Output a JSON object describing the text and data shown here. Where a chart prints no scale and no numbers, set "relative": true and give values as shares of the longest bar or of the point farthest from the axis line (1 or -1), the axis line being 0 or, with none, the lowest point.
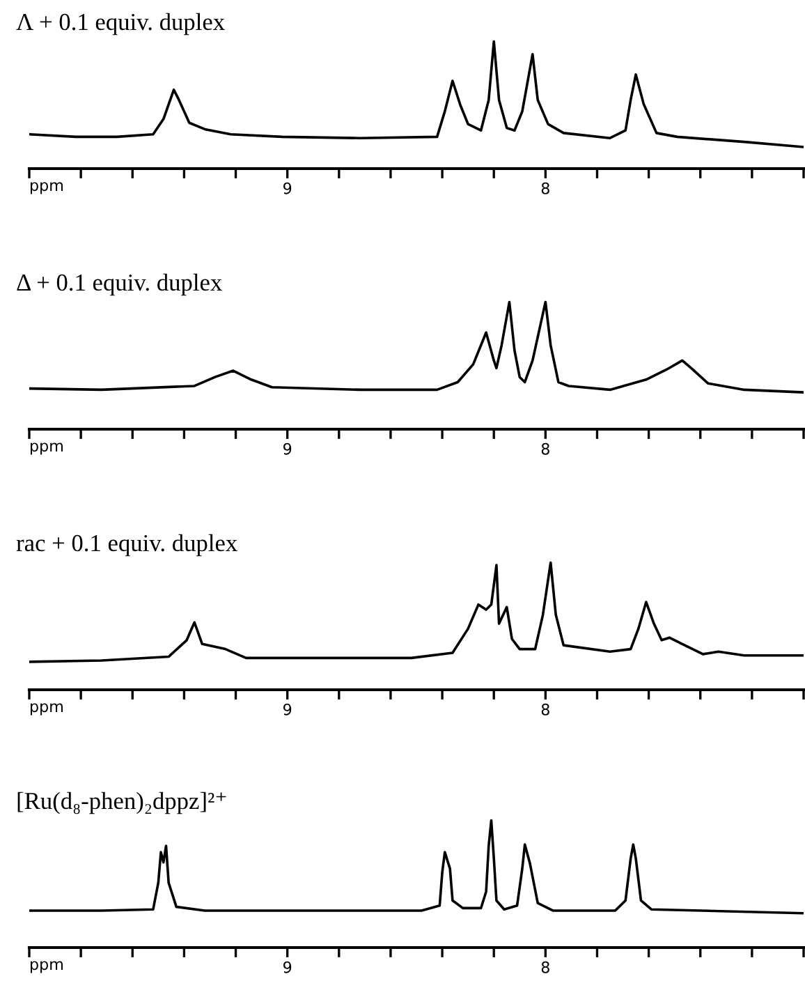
{
  "chart_data": [
    {
      "type": "line",
      "title": "Λ + 0.1 equiv. duplex",
      "xlabel": "ppm",
      "relative": true,
      "xlim": [
        10.0,
        7.0
      ],
      "xticks": [
        {
          "value": 10.0,
          "label": null
        },
        {
          "value": 9.8,
          "label": null
        },
        {
          "value": 9.6,
          "label": null
        },
        {
          "value": 9.4,
          "label": null
        },
        {
          "value": 9.2,
          "label": null
        },
        9,
        {
          "value": 8.8,
          "label": null
        },
        {
          "value": 8.6,
          "label": null
        },
        {
          "value": 8.4,
          "label": null
        },
        {
          "value": 8.2,
          "label": null
        },
        8,
        {
          "value": 7.8,
          "label": null
        },
        {
          "value": 7.6,
          "label": null
        },
        {
          "value": 7.4,
          "label": null
        },
        {
          "value": 7.2,
          "label": null
        },
        {
          "value": 7.0,
          "label": null
        }
      ],
      "tick_labels": "x",
      "grid": false,
      "legend": false,
      "marker": "none",
      "line_style": "solid",
      "series": [
        {
          "color": "#000000",
          "x": [
            10.0,
            9.82,
            9.66,
            9.52,
            9.48,
            9.44,
            9.42,
            9.38,
            9.32,
            9.22,
            9.02,
            8.72,
            8.42,
            8.39,
            8.36,
            8.33,
            8.3,
            8.25,
            8.22,
            8.2,
            8.18,
            8.15,
            8.12,
            8.09,
            8.05,
            8.03,
            7.99,
            7.93,
            7.75,
            7.69,
            7.67,
            7.65,
            7.62,
            7.57,
            7.49,
            7.23,
            7.0
          ],
          "values": [
            0.27,
            0.25,
            0.25,
            0.27,
            0.39,
            0.62,
            0.54,
            0.36,
            0.31,
            0.27,
            0.25,
            0.24,
            0.25,
            0.45,
            0.69,
            0.5,
            0.35,
            0.3,
            0.54,
            1.0,
            0.54,
            0.32,
            0.3,
            0.45,
            0.9,
            0.54,
            0.35,
            0.28,
            0.24,
            0.3,
            0.54,
            0.74,
            0.51,
            0.28,
            0.25,
            0.21,
            0.17
          ]
        }
      ]
    },
    {
      "type": "line",
      "title": "Δ + 0.1 equiv. duplex",
      "xlabel": "ppm",
      "relative": true,
      "xlim": [
        10.0,
        7.0
      ],
      "xticks": [
        {
          "value": 10.0,
          "label": null
        },
        {
          "value": 9.8,
          "label": null
        },
        {
          "value": 9.6,
          "label": null
        },
        {
          "value": 9.4,
          "label": null
        },
        {
          "value": 9.2,
          "label": null
        },
        9,
        {
          "value": 8.8,
          "label": null
        },
        {
          "value": 8.6,
          "label": null
        },
        {
          "value": 8.4,
          "label": null
        },
        {
          "value": 8.2,
          "label": null
        },
        8,
        {
          "value": 7.8,
          "label": null
        },
        {
          "value": 7.6,
          "label": null
        },
        {
          "value": 7.4,
          "label": null
        },
        {
          "value": 7.2,
          "label": null
        },
        {
          "value": 7.0,
          "label": null
        }
      ],
      "tick_labels": "x",
      "grid": false,
      "legend": false,
      "marker": "none",
      "line_style": "solid",
      "series": [
        {
          "color": "#000000",
          "x": [
            10.0,
            9.72,
            9.36,
            9.28,
            9.21,
            9.14,
            9.06,
            8.72,
            8.42,
            8.34,
            8.28,
            8.23,
            8.2,
            8.19,
            8.17,
            8.14,
            8.12,
            8.1,
            8.08,
            8.05,
            8.0,
            7.98,
            7.95,
            7.91,
            7.75,
            7.61,
            7.53,
            7.47,
            7.43,
            7.37,
            7.23,
            7.0
          ],
          "values": [
            0.32,
            0.31,
            0.34,
            0.41,
            0.46,
            0.39,
            0.33,
            0.31,
            0.31,
            0.37,
            0.51,
            0.76,
            0.54,
            0.48,
            0.66,
            1.0,
            0.62,
            0.41,
            0.37,
            0.54,
            1.0,
            0.66,
            0.37,
            0.34,
            0.31,
            0.39,
            0.47,
            0.54,
            0.47,
            0.36,
            0.31,
            0.29
          ]
        }
      ]
    },
    {
      "type": "line",
      "title": "rac + 0.1 equiv. duplex",
      "xlabel": "ppm",
      "relative": true,
      "xlim": [
        10.0,
        7.0
      ],
      "xticks": [
        {
          "value": 10.0,
          "label": null
        },
        {
          "value": 9.8,
          "label": null
        },
        {
          "value": 9.6,
          "label": null
        },
        {
          "value": 9.4,
          "label": null
        },
        {
          "value": 9.2,
          "label": null
        },
        9,
        {
          "value": 8.8,
          "label": null
        },
        {
          "value": 8.6,
          "label": null
        },
        {
          "value": 8.4,
          "label": null
        },
        {
          "value": 8.2,
          "label": null
        },
        8,
        {
          "value": 7.8,
          "label": null
        },
        {
          "value": 7.6,
          "label": null
        },
        {
          "value": 7.4,
          "label": null
        },
        {
          "value": 7.2,
          "label": null
        },
        {
          "value": 7.0,
          "label": null
        }
      ],
      "tick_labels": "x",
      "grid": false,
      "legend": false,
      "marker": "none",
      "line_style": "solid",
      "series": [
        {
          "color": "#000000",
          "x": [
            10.0,
            9.72,
            9.46,
            9.39,
            9.36,
            9.33,
            9.24,
            9.16,
            8.92,
            8.52,
            8.36,
            8.3,
            8.26,
            8.23,
            8.21,
            8.19,
            8.18,
            8.15,
            8.13,
            8.1,
            8.04,
            8.01,
            7.98,
            7.96,
            7.93,
            7.75,
            7.67,
            7.64,
            7.61,
            7.58,
            7.55,
            7.52,
            7.47,
            7.39,
            7.33,
            7.23,
            7.0
          ],
          "values": [
            0.22,
            0.23,
            0.26,
            0.39,
            0.53,
            0.36,
            0.32,
            0.25,
            0.25,
            0.25,
            0.29,
            0.48,
            0.67,
            0.63,
            0.67,
            0.98,
            0.52,
            0.65,
            0.4,
            0.32,
            0.32,
            0.59,
            1.0,
            0.59,
            0.35,
            0.3,
            0.32,
            0.48,
            0.69,
            0.52,
            0.39,
            0.41,
            0.36,
            0.28,
            0.3,
            0.27,
            0.27
          ]
        }
      ]
    },
    {
      "type": "line",
      "title": "[Ru(d₈-phen)₂dppz]²⁺",
      "xlabel": "ppm",
      "relative": true,
      "xlim": [
        10.0,
        7.0
      ],
      "xticks": [
        {
          "value": 10.0,
          "label": null
        },
        {
          "value": 9.8,
          "label": null
        },
        {
          "value": 9.6,
          "label": null
        },
        {
          "value": 9.4,
          "label": null
        },
        {
          "value": 9.2,
          "label": null
        },
        9,
        {
          "value": 8.8,
          "label": null
        },
        {
          "value": 8.6,
          "label": null
        },
        {
          "value": 8.4,
          "label": null
        },
        {
          "value": 8.2,
          "label": null
        },
        8,
        {
          "value": 7.8,
          "label": null
        },
        {
          "value": 7.6,
          "label": null
        },
        {
          "value": 7.4,
          "label": null
        },
        {
          "value": 7.2,
          "label": null
        },
        {
          "value": 7.0,
          "label": null
        }
      ],
      "tick_labels": "x",
      "grid": false,
      "legend": false,
      "marker": "none",
      "line_style": "solid",
      "series": [
        {
          "color": "#000000",
          "x": [
            10.0,
            9.72,
            9.52,
            9.5,
            9.49,
            9.48,
            9.47,
            9.46,
            9.43,
            9.32,
            8.92,
            8.48,
            8.41,
            8.4,
            8.39,
            8.37,
            8.36,
            8.32,
            8.25,
            8.23,
            8.22,
            8.21,
            8.2,
            8.19,
            8.16,
            8.11,
            8.09,
            8.08,
            8.06,
            8.03,
            7.97,
            7.73,
            7.69,
            7.67,
            7.66,
            7.65,
            7.63,
            7.59,
            7.0
          ],
          "values": [
            0.29,
            0.29,
            0.3,
            0.51,
            0.75,
            0.67,
            0.8,
            0.51,
            0.32,
            0.29,
            0.29,
            0.29,
            0.33,
            0.59,
            0.75,
            0.62,
            0.37,
            0.31,
            0.31,
            0.44,
            0.8,
            1.0,
            0.7,
            0.37,
            0.3,
            0.33,
            0.62,
            0.81,
            0.66,
            0.35,
            0.29,
            0.29,
            0.37,
            0.7,
            0.81,
            0.7,
            0.37,
            0.3,
            0.27
          ]
        }
      ]
    }
  ]
}
